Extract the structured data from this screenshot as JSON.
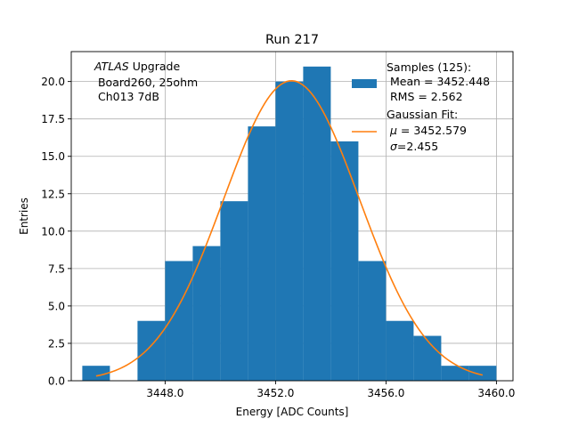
{
  "chart_data": {
    "type": "bar",
    "title": "Run 217",
    "xlabel": "Energy [ADC Counts]",
    "ylabel": "Entries",
    "xlim": [
      3444.6,
      3460.6
    ],
    "ylim": [
      0,
      22
    ],
    "xticks": [
      3448,
      3452,
      3456,
      3460
    ],
    "xtick_labels": [
      "3448.0",
      "3452.0",
      "3456.0",
      "3460.0"
    ],
    "yticks": [
      0,
      2.5,
      5,
      7.5,
      10,
      12.5,
      15,
      17.5,
      20
    ],
    "ytick_labels": [
      "0.0",
      "2.5",
      "5.0",
      "7.5",
      "10.0",
      "12.5",
      "15.0",
      "17.5",
      "20.0"
    ],
    "grid": true,
    "histogram": {
      "bin_edges": [
        3445,
        3446,
        3447,
        3448,
        3449,
        3450,
        3451,
        3452,
        3453,
        3454,
        3455,
        3456,
        3457,
        3458,
        3459,
        3460
      ],
      "counts": [
        1,
        0,
        4,
        8,
        9,
        12,
        17,
        20,
        21,
        16,
        8,
        4,
        3,
        1,
        1
      ],
      "color": "#1f77b4"
    },
    "fit": {
      "mu": 3452.579,
      "sigma": 2.455,
      "amplitude": 20.05,
      "x_range": [
        3445.5,
        3459.5
      ],
      "color": "#ff7f0e"
    },
    "annotation": {
      "atlas": "ATLAS",
      "line1_rest": " Upgrade",
      "line2": " Board260, 25ohm",
      "line3": " Ch013 7dB"
    },
    "legend": {
      "position": "upper right",
      "samples_line1": "Samples (125):",
      "samples_line2": " Mean = 3452.448",
      "samples_line3": " RMS = 2.562",
      "fit_line1": "Gaussian Fit:",
      "fit_line2_sym": "μ",
      "fit_line2_rest": " = 3452.579",
      "fit_line3_sym": "σ",
      "fit_line3_rest": "=2.455"
    }
  }
}
